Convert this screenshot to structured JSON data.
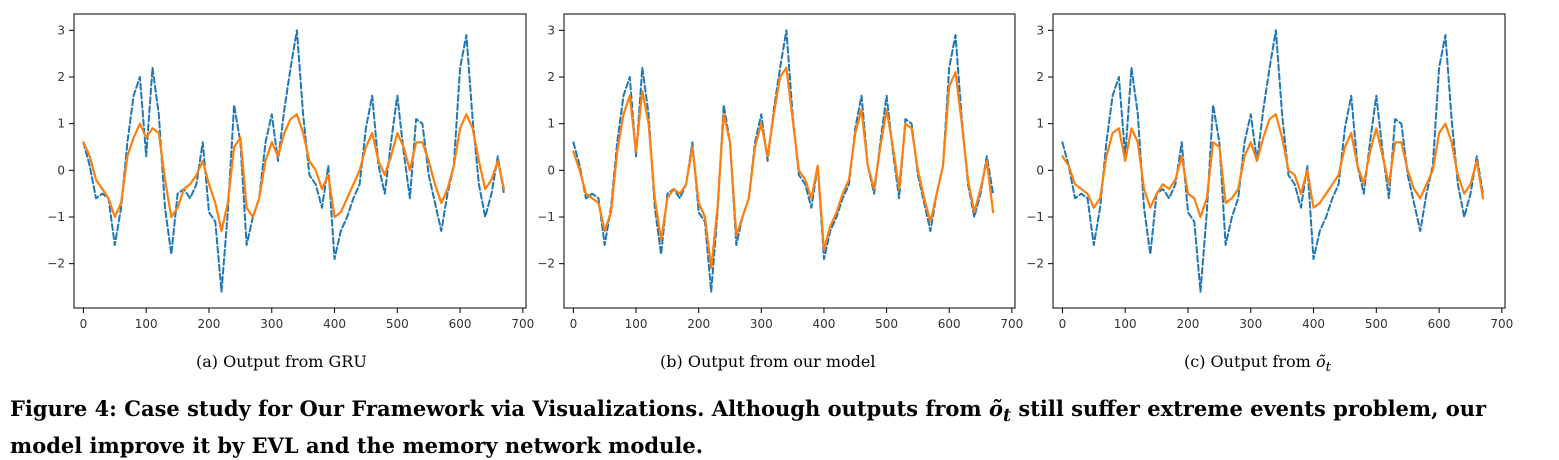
{
  "chart_data": [
    {
      "type": "line",
      "subcaption_prefix": "(a)",
      "subcaption": "Output from GRU",
      "xlim": [
        -15,
        705
      ],
      "ylim": [
        -2.95,
        3.35
      ],
      "xticks": [
        0,
        100,
        200,
        300,
        400,
        500,
        600,
        700
      ],
      "yticks": [
        -2,
        -1,
        0,
        1,
        2,
        3
      ],
      "grid": false,
      "x": [
        0,
        10,
        20,
        30,
        40,
        50,
        60,
        70,
        80,
        90,
        100,
        110,
        120,
        130,
        140,
        150,
        160,
        170,
        180,
        190,
        200,
        210,
        220,
        230,
        240,
        250,
        260,
        270,
        280,
        290,
        300,
        310,
        320,
        330,
        340,
        350,
        360,
        370,
        380,
        390,
        400,
        410,
        420,
        430,
        440,
        450,
        460,
        470,
        480,
        490,
        500,
        510,
        520,
        530,
        540,
        550,
        560,
        570,
        580,
        590,
        600,
        610,
        620,
        630,
        640,
        650,
        660,
        670
      ],
      "series": [
        {
          "style": "dashed",
          "color": "#1f77b4",
          "values": [
            0.6,
            0.1,
            -0.6,
            -0.5,
            -0.6,
            -1.6,
            -0.8,
            0.6,
            1.6,
            2.0,
            0.3,
            2.2,
            1.2,
            -0.8,
            -1.8,
            -0.5,
            -0.4,
            -0.6,
            -0.3,
            0.6,
            -0.9,
            -1.1,
            -2.6,
            -0.9,
            1.4,
            0.6,
            -1.6,
            -1.0,
            -0.6,
            0.6,
            1.2,
            0.2,
            1.3,
            2.2,
            3.0,
            1.2,
            -0.1,
            -0.3,
            -0.8,
            0.1,
            -1.9,
            -1.3,
            -1.0,
            -0.6,
            -0.3,
            0.9,
            1.6,
            0.1,
            -0.5,
            0.6,
            1.6,
            0.4,
            -0.6,
            1.1,
            1.0,
            -0.1,
            -0.7,
            -1.3,
            -0.5,
            0.1,
            2.2,
            2.9,
            1.1,
            -0.3,
            -1.0,
            -0.5,
            0.3,
            -0.5
          ]
        },
        {
          "style": "solid",
          "color": "#ff7f0e",
          "values": [
            0.6,
            0.3,
            -0.2,
            -0.4,
            -0.6,
            -1.0,
            -0.7,
            0.3,
            0.7,
            1.0,
            0.7,
            0.9,
            0.8,
            -0.2,
            -1.0,
            -0.8,
            -0.4,
            -0.3,
            -0.1,
            0.2,
            -0.3,
            -0.7,
            -1.3,
            -0.7,
            0.5,
            0.7,
            -0.8,
            -1.0,
            -0.6,
            0.2,
            0.6,
            0.3,
            0.8,
            1.1,
            1.2,
            0.8,
            0.2,
            0.0,
            -0.4,
            -0.1,
            -1.0,
            -0.9,
            -0.6,
            -0.3,
            0.0,
            0.5,
            0.8,
            0.2,
            -0.1,
            0.3,
            0.8,
            0.5,
            0.0,
            0.6,
            0.6,
            0.2,
            -0.3,
            -0.7,
            -0.4,
            0.1,
            0.9,
            1.2,
            0.9,
            0.2,
            -0.4,
            -0.2,
            0.2,
            -0.4
          ]
        }
      ]
    },
    {
      "type": "line",
      "subcaption_prefix": "(b)",
      "subcaption": "Output from our model",
      "xlim": [
        -15,
        705
      ],
      "ylim": [
        -2.95,
        3.35
      ],
      "xticks": [
        0,
        100,
        200,
        300,
        400,
        500,
        600,
        700
      ],
      "yticks": [
        -2,
        -1,
        0,
        1,
        2,
        3
      ],
      "grid": false,
      "x": [
        0,
        10,
        20,
        30,
        40,
        50,
        60,
        70,
        80,
        90,
        100,
        110,
        120,
        130,
        140,
        150,
        160,
        170,
        180,
        190,
        200,
        210,
        220,
        230,
        240,
        250,
        260,
        270,
        280,
        290,
        300,
        310,
        320,
        330,
        340,
        350,
        360,
        370,
        380,
        390,
        400,
        410,
        420,
        430,
        440,
        450,
        460,
        470,
        480,
        490,
        500,
        510,
        520,
        530,
        540,
        550,
        560,
        570,
        580,
        590,
        600,
        610,
        620,
        630,
        640,
        650,
        660,
        670
      ],
      "series": [
        {
          "style": "dashed",
          "color": "#1f77b4",
          "values": [
            0.6,
            0.1,
            -0.6,
            -0.5,
            -0.6,
            -1.6,
            -0.8,
            0.6,
            1.6,
            2.0,
            0.3,
            2.2,
            1.2,
            -0.8,
            -1.8,
            -0.5,
            -0.4,
            -0.6,
            -0.3,
            0.6,
            -0.9,
            -1.1,
            -2.6,
            -0.9,
            1.4,
            0.6,
            -1.6,
            -1.0,
            -0.6,
            0.6,
            1.2,
            0.2,
            1.3,
            2.2,
            3.0,
            1.2,
            -0.1,
            -0.3,
            -0.8,
            0.1,
            -1.9,
            -1.3,
            -1.0,
            -0.6,
            -0.3,
            0.9,
            1.6,
            0.1,
            -0.5,
            0.6,
            1.6,
            0.4,
            -0.6,
            1.1,
            1.0,
            -0.1,
            -0.7,
            -1.3,
            -0.5,
            0.1,
            2.2,
            2.9,
            1.1,
            -0.3,
            -1.0,
            -0.5,
            0.3,
            -0.5
          ]
        },
        {
          "style": "solid",
          "color": "#ff7f0e",
          "values": [
            0.4,
            0.0,
            -0.5,
            -0.6,
            -0.7,
            -1.3,
            -0.9,
            0.4,
            1.2,
            1.6,
            0.4,
            1.7,
            1.0,
            -0.6,
            -1.5,
            -0.6,
            -0.4,
            -0.5,
            -0.3,
            0.5,
            -0.7,
            -1.0,
            -2.1,
            -0.8,
            1.2,
            0.6,
            -1.4,
            -1.0,
            -0.6,
            0.5,
            1.0,
            0.3,
            1.2,
            2.0,
            2.2,
            1.1,
            0.0,
            -0.2,
            -0.6,
            0.1,
            -1.7,
            -1.2,
            -0.9,
            -0.5,
            -0.2,
            0.8,
            1.3,
            0.1,
            -0.4,
            0.5,
            1.3,
            0.5,
            -0.4,
            1.0,
            0.9,
            0.0,
            -0.6,
            -1.1,
            -0.5,
            0.1,
            1.8,
            2.1,
            1.0,
            -0.2,
            -0.9,
            -0.4,
            0.2,
            -0.9
          ]
        }
      ]
    },
    {
      "type": "line",
      "subcaption_prefix": "(c)",
      "subcaption": "Output from",
      "subcaption_symbol": "õ",
      "subcaption_subscript": "t",
      "xlim": [
        -15,
        705
      ],
      "ylim": [
        -2.95,
        3.35
      ],
      "xticks": [
        0,
        100,
        200,
        300,
        400,
        500,
        600,
        700
      ],
      "yticks": [
        -2,
        -1,
        0,
        1,
        2,
        3
      ],
      "grid": false,
      "x": [
        0,
        10,
        20,
        30,
        40,
        50,
        60,
        70,
        80,
        90,
        100,
        110,
        120,
        130,
        140,
        150,
        160,
        170,
        180,
        190,
        200,
        210,
        220,
        230,
        240,
        250,
        260,
        270,
        280,
        290,
        300,
        310,
        320,
        330,
        340,
        350,
        360,
        370,
        380,
        390,
        400,
        410,
        420,
        430,
        440,
        450,
        460,
        470,
        480,
        490,
        500,
        510,
        520,
        530,
        540,
        550,
        560,
        570,
        580,
        590,
        600,
        610,
        620,
        630,
        640,
        650,
        660,
        670
      ],
      "series": [
        {
          "style": "dashed",
          "color": "#1f77b4",
          "values": [
            0.6,
            0.1,
            -0.6,
            -0.5,
            -0.6,
            -1.6,
            -0.8,
            0.6,
            1.6,
            2.0,
            0.3,
            2.2,
            1.2,
            -0.8,
            -1.8,
            -0.5,
            -0.4,
            -0.6,
            -0.3,
            0.6,
            -0.9,
            -1.1,
            -2.6,
            -0.9,
            1.4,
            0.6,
            -1.6,
            -1.0,
            -0.6,
            0.6,
            1.2,
            0.2,
            1.3,
            2.2,
            3.0,
            1.2,
            -0.1,
            -0.3,
            -0.8,
            0.1,
            -1.9,
            -1.3,
            -1.0,
            -0.6,
            -0.3,
            0.9,
            1.6,
            0.1,
            -0.5,
            0.6,
            1.6,
            0.4,
            -0.6,
            1.1,
            1.0,
            -0.1,
            -0.7,
            -1.3,
            -0.5,
            0.1,
            2.2,
            2.9,
            1.1,
            -0.3,
            -1.0,
            -0.5,
            0.3,
            -0.5
          ]
        },
        {
          "style": "solid",
          "color": "#ff7f0e",
          "values": [
            0.3,
            0.1,
            -0.3,
            -0.4,
            -0.5,
            -0.8,
            -0.6,
            0.3,
            0.8,
            0.9,
            0.2,
            0.9,
            0.6,
            -0.4,
            -0.8,
            -0.5,
            -0.3,
            -0.4,
            -0.2,
            0.3,
            -0.5,
            -0.6,
            -1.0,
            -0.6,
            0.6,
            0.5,
            -0.7,
            -0.6,
            -0.4,
            0.3,
            0.6,
            0.2,
            0.7,
            1.1,
            1.2,
            0.7,
            0.0,
            -0.1,
            -0.5,
            0.0,
            -0.8,
            -0.7,
            -0.5,
            -0.3,
            -0.1,
            0.5,
            0.8,
            0.1,
            -0.3,
            0.4,
            0.9,
            0.3,
            -0.3,
            0.6,
            0.6,
            0.0,
            -0.4,
            -0.6,
            -0.3,
            0.0,
            0.8,
            1.0,
            0.6,
            -0.1,
            -0.5,
            -0.3,
            0.2,
            -0.6
          ]
        }
      ]
    }
  ],
  "figure_caption": {
    "before": "Figure 4: Case study for Our Framework via Visualizations. Although outputs from",
    "symbol": "õ",
    "subscript": "t",
    "after": "still suffer extreme events problem, our model improve it by EVL and the memory network module."
  }
}
